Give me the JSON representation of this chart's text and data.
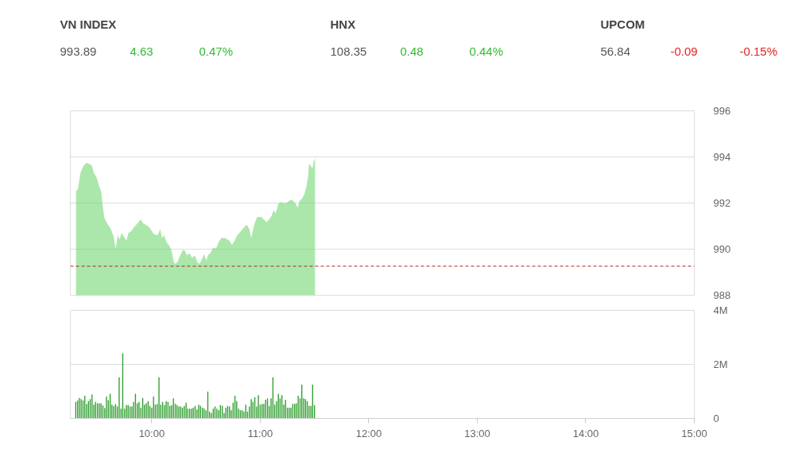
{
  "chart_data": [
    {
      "type": "other",
      "annotations": [
        "VN INDEX",
        "993.89",
        "4.63",
        "0.47%",
        "HNX",
        "108.35",
        "0.48",
        "0.44%",
        "UPCOM",
        "56.84",
        "-0.09",
        "-0.15%"
      ],
      "colors": [
        "#444444",
        "#555555",
        "#33bb33",
        "#33bb33",
        "#444444",
        "#555555",
        "#33bb33",
        "#33bb33",
        "#444444",
        "#555555",
        "#e02424",
        "#e02424"
      ]
    },
    {
      "type": "area",
      "color": "#66d466",
      "xlim": [
        9.25,
        15
      ],
      "ylim": [
        988,
        996
      ],
      "yticks": [
        988,
        990,
        992,
        994,
        996
      ],
      "grid": "y",
      "tick_labels": "y",
      "ref_lines": [
        {
          "axis": "y",
          "value": 989.26,
          "color": "#b22222",
          "line_style": "dashed"
        }
      ],
      "x": [
        9.302,
        9.32,
        9.344,
        9.369,
        9.4,
        9.43,
        9.449,
        9.466,
        9.491,
        9.515,
        9.535,
        9.547,
        9.564,
        9.589,
        9.621,
        9.65,
        9.667,
        9.687,
        9.704,
        9.723,
        9.743,
        9.768,
        9.785,
        9.809,
        9.834,
        9.87,
        9.9,
        9.919,
        9.944,
        9.968,
        9.988,
        10.017,
        10.054,
        10.078,
        10.095,
        10.115,
        10.135,
        10.164,
        10.184,
        10.201,
        10.213,
        10.237,
        10.262,
        10.286,
        10.306,
        10.323,
        10.348,
        10.372,
        10.396,
        10.421,
        10.438,
        10.458,
        10.482,
        10.502,
        10.519,
        10.543,
        10.568,
        10.592,
        10.617,
        10.641,
        10.678,
        10.715,
        10.739,
        10.764,
        10.788,
        10.82,
        10.849,
        10.874,
        10.898,
        10.918,
        10.935,
        10.952,
        10.972,
        11.008,
        11.033,
        11.057,
        11.082,
        11.106,
        11.123,
        11.143,
        11.167,
        11.192,
        11.229,
        11.253,
        11.278,
        11.302,
        11.326,
        11.344,
        11.363,
        11.388,
        11.407,
        11.424,
        11.442,
        11.449,
        11.466,
        11.481,
        11.49,
        11.505
      ],
      "values": [
        992.5,
        992.62,
        993.31,
        993.6,
        993.75,
        993.68,
        993.63,
        993.31,
        993.13,
        992.73,
        992.5,
        991.92,
        991.35,
        991.12,
        990.89,
        990.54,
        990.02,
        990.6,
        990.42,
        990.71,
        990.54,
        990.37,
        990.71,
        990.77,
        990.94,
        991.12,
        991.29,
        991.12,
        991.06,
        990.98,
        990.89,
        990.66,
        990.6,
        990.86,
        990.48,
        990.6,
        990.31,
        990.14,
        989.91,
        989.5,
        989.36,
        989.44,
        989.73,
        989.96,
        989.94,
        989.73,
        989.83,
        989.62,
        989.73,
        989.44,
        989.36,
        989.5,
        989.79,
        989.5,
        989.73,
        989.85,
        990.08,
        990.02,
        990.31,
        990.48,
        990.48,
        990.37,
        990.19,
        990.37,
        990.6,
        990.77,
        990.94,
        991.06,
        990.89,
        990.48,
        990.89,
        991.17,
        991.4,
        991.4,
        991.29,
        991.17,
        991.29,
        991.46,
        991.69,
        991.55,
        991.98,
        992.04,
        991.98,
        992.04,
        992.15,
        992.1,
        991.98,
        991.81,
        992.1,
        992.21,
        992.39,
        992.67,
        993.19,
        993.68,
        993.63,
        993.48,
        993.77,
        993.95
      ]
    },
    {
      "type": "bar",
      "color": "#2f9e2f",
      "xlim": [
        9.25,
        15
      ],
      "xticks": [
        {
          "value": 10,
          "label": "10:00"
        },
        {
          "value": 11,
          "label": "11:00"
        },
        {
          "value": 12,
          "label": "12:00"
        },
        {
          "value": 13,
          "label": "13:00"
        },
        {
          "value": 14,
          "label": "14:00"
        },
        {
          "value": 15,
          "label": "15:00"
        }
      ],
      "ylim": [
        0,
        4000000
      ],
      "yticks": [
        0,
        {
          "value": 2000000,
          "label": "2M"
        },
        {
          "value": 4000000,
          "label": "4M"
        }
      ],
      "grid": "y",
      "x": [
        9.3,
        9.317,
        9.333,
        9.35,
        9.367,
        9.383,
        9.4,
        9.417,
        9.433,
        9.45,
        9.467,
        9.483,
        9.5,
        9.517,
        9.533,
        9.55,
        9.567,
        9.583,
        9.6,
        9.617,
        9.633,
        9.65,
        9.667,
        9.683,
        9.7,
        9.717,
        9.733,
        9.75,
        9.767,
        9.783,
        9.8,
        9.817,
        9.833,
        9.85,
        9.867,
        9.883,
        9.9,
        9.917,
        9.933,
        9.95,
        9.967,
        9.983,
        10.0,
        10.017,
        10.033,
        10.05,
        10.067,
        10.083,
        10.1,
        10.117,
        10.133,
        10.15,
        10.167,
        10.183,
        10.2,
        10.217,
        10.233,
        10.25,
        10.267,
        10.283,
        10.3,
        10.317,
        10.333,
        10.35,
        10.367,
        10.383,
        10.4,
        10.417,
        10.433,
        10.45,
        10.467,
        10.483,
        10.5,
        10.517,
        10.533,
        10.55,
        10.567,
        10.583,
        10.6,
        10.617,
        10.633,
        10.65,
        10.667,
        10.683,
        10.7,
        10.717,
        10.733,
        10.75,
        10.767,
        10.783,
        10.8,
        10.817,
        10.833,
        10.85,
        10.867,
        10.883,
        10.9,
        10.917,
        10.933,
        10.95,
        10.967,
        10.983,
        11.0,
        11.017,
        11.033,
        11.05,
        11.067,
        11.083,
        11.1,
        11.117,
        11.133,
        11.15,
        11.167,
        11.183,
        11.2,
        11.217,
        11.233,
        11.25,
        11.267,
        11.283,
        11.3,
        11.317,
        11.333,
        11.35,
        11.367,
        11.383,
        11.4,
        11.417,
        11.433,
        11.45,
        11.467,
        11.483,
        11.5
      ],
      "values": [
        610000,
        660000,
        760000,
        710000,
        660000,
        840000,
        540000,
        640000,
        710000,
        880000,
        510000,
        610000,
        560000,
        560000,
        560000,
        480000,
        380000,
        810000,
        680000,
        910000,
        510000,
        460000,
        530000,
        440000,
        1520000,
        360000,
        2410000,
        360000,
        490000,
        490000,
        440000,
        440000,
        610000,
        910000,
        560000,
        610000,
        400000,
        760000,
        510000,
        560000,
        640000,
        460000,
        400000,
        810000,
        510000,
        540000,
        1520000,
        510000,
        610000,
        490000,
        640000,
        610000,
        460000,
        490000,
        740000,
        540000,
        490000,
        440000,
        440000,
        400000,
        460000,
        580000,
        360000,
        360000,
        360000,
        400000,
        460000,
        330000,
        510000,
        460000,
        400000,
        360000,
        300000,
        990000,
        250000,
        200000,
        360000,
        440000,
        360000,
        300000,
        490000,
        460000,
        200000,
        400000,
        460000,
        440000,
        300000,
        580000,
        840000,
        640000,
        360000,
        300000,
        300000,
        250000,
        510000,
        250000,
        440000,
        710000,
        610000,
        790000,
        440000,
        860000,
        510000,
        540000,
        540000,
        690000,
        740000,
        460000,
        740000,
        1520000,
        510000,
        640000,
        910000,
        740000,
        860000,
        510000,
        690000,
        400000,
        400000,
        400000,
        540000,
        540000,
        560000,
        840000,
        740000,
        1250000,
        740000,
        710000,
        640000,
        460000,
        460000,
        1250000,
        490000
      ]
    }
  ]
}
